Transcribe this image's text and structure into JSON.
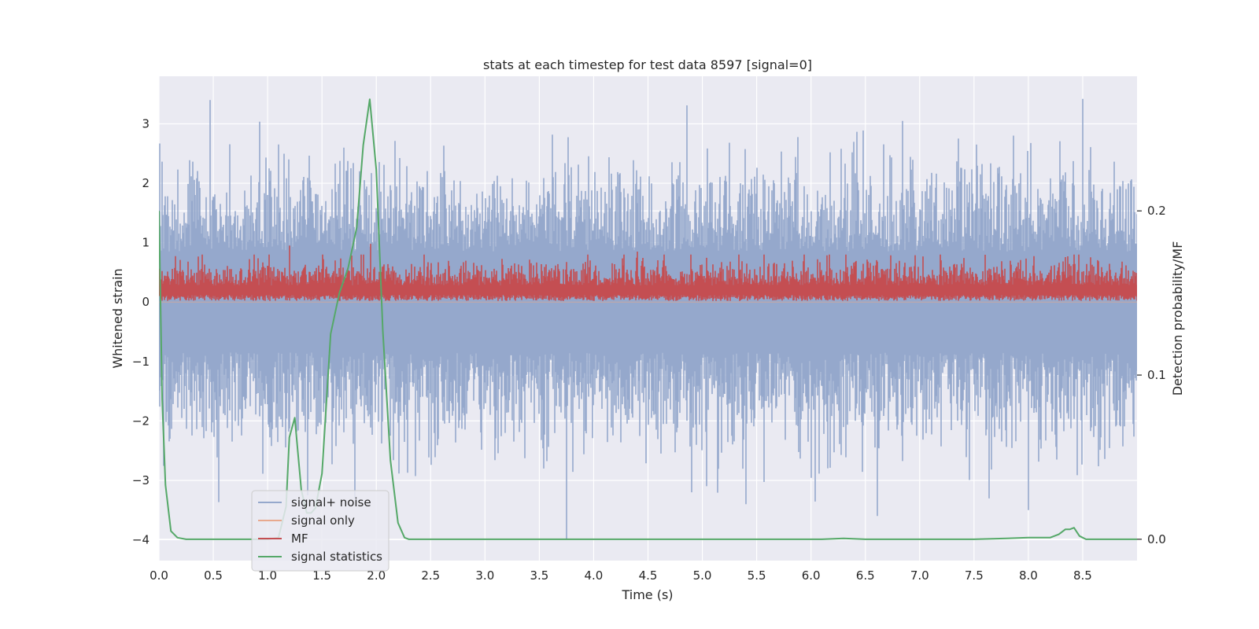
{
  "chart_data": {
    "type": "line",
    "title": "stats at each timestep for test data 8597 [signal=0]",
    "xlabel": "Time (s)",
    "ylabel": "Whitened strain",
    "y2label": "Detection probability/MF",
    "xlim": [
      0.0,
      9.0
    ],
    "ylim": [
      -4.35,
      3.8
    ],
    "y2lim": [
      -0.013,
      0.282
    ],
    "xticks": [
      0.0,
      0.5,
      1.0,
      1.5,
      2.0,
      2.5,
      3.0,
      3.5,
      4.0,
      4.5,
      5.0,
      5.5,
      6.0,
      6.5,
      7.0,
      7.5,
      8.0,
      8.5
    ],
    "xtick_labels": [
      "0.0",
      "0.5",
      "1.0",
      "1.5",
      "2.0",
      "2.5",
      "3.0",
      "3.5",
      "4.0",
      "4.5",
      "5.0",
      "5.5",
      "6.0",
      "6.5",
      "7.0",
      "7.5",
      "8.0",
      "8.5"
    ],
    "yticks": [
      3,
      2,
      1,
      0,
      -1,
      -2,
      -3,
      -4
    ],
    "ytick_labels": [
      "3",
      "2",
      "1",
      "0",
      "−1",
      "−2",
      "−3",
      "−4"
    ],
    "y2ticks": [
      0.2,
      0.1,
      0.0
    ],
    "y2tick_labels": [
      "0.2",
      "0.1",
      "0.0"
    ],
    "grid": true,
    "legend_position": "lower-left",
    "series": [
      {
        "name": "signal+ noise",
        "color": "#95a8cc",
        "axis": "left",
        "kind": "noise",
        "amplitude_range": [
          -3.6,
          3.4
        ],
        "notable_extremes": [
          [
            0.47,
            3.4
          ],
          [
            8.5,
            3.42
          ],
          [
            3.75,
            -4.0
          ],
          [
            8.0,
            -3.5
          ],
          [
            5.4,
            -3.4
          ],
          [
            4.9,
            -3.2
          ],
          [
            1.8,
            -3.3
          ]
        ]
      },
      {
        "name": "signal only",
        "color": "#e8a98e",
        "axis": "left",
        "kind": "flat",
        "values": [
          0.0
        ]
      },
      {
        "name": "MF",
        "color": "#c44e52",
        "axis": "left",
        "kind": "band",
        "band_range": [
          0.0,
          0.8
        ],
        "notable_extremes": [
          [
            1.95,
            0.98
          ],
          [
            1.2,
            0.95
          ],
          [
            4.4,
            0.85
          ]
        ]
      },
      {
        "name": "signal statistics",
        "color": "#55a868",
        "axis": "right",
        "x": [
          0.0,
          0.03,
          0.06,
          0.11,
          0.17,
          0.25,
          0.35,
          0.6,
          0.9,
          1.0,
          1.1,
          1.17,
          1.2,
          1.25,
          1.31,
          1.36,
          1.4,
          1.44,
          1.5,
          1.58,
          1.66,
          1.74,
          1.82,
          1.88,
          1.94,
          2.0,
          2.06,
          2.13,
          2.2,
          2.26,
          2.3,
          2.35,
          2.5,
          3.0,
          4.0,
          5.0,
          6.0,
          6.1,
          6.3,
          6.5,
          7.0,
          7.5,
          7.8,
          8.0,
          8.2,
          8.28,
          8.34,
          8.38,
          8.42,
          8.47,
          8.53,
          8.6,
          8.7,
          9.0
        ],
        "values": [
          0.2,
          0.085,
          0.033,
          0.005,
          0.001,
          0.0,
          0.0,
          0.0,
          0.0,
          0.0,
          0.001,
          0.02,
          0.062,
          0.074,
          0.03,
          0.016,
          0.016,
          0.019,
          0.04,
          0.125,
          0.15,
          0.165,
          0.19,
          0.24,
          0.268,
          0.225,
          0.127,
          0.048,
          0.01,
          0.001,
          0.0,
          0.0,
          0.0,
          0.0,
          0.0,
          0.0,
          0.0,
          0.0,
          0.0005,
          0.0,
          0.0,
          0.0,
          0.0005,
          0.001,
          0.001,
          0.003,
          0.006,
          0.006,
          0.007,
          0.002,
          0.0,
          0.0,
          0.0,
          0.0
        ]
      }
    ]
  }
}
